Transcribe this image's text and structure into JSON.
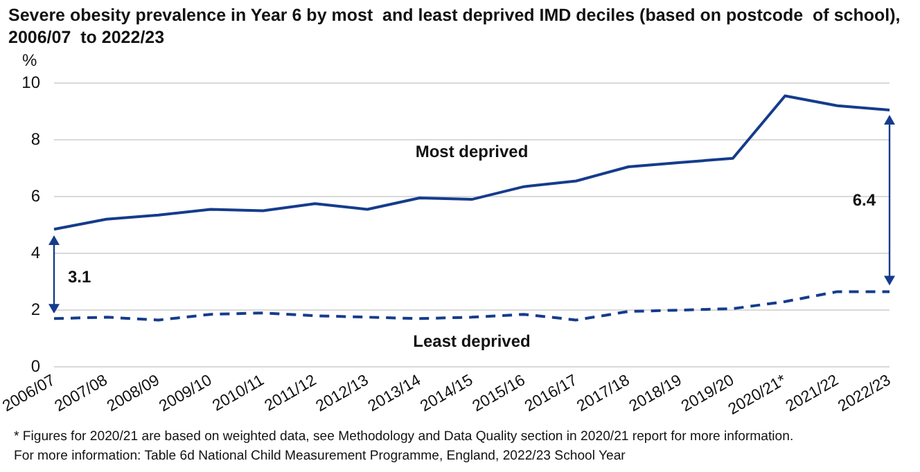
{
  "chart_data": {
    "type": "line",
    "title": "Severe obesity prevalence in Year 6 by most  and least deprived IMD deciles (based on postcode  of school), 2006/07  to 2022/23",
    "ylabel": "%",
    "categories": [
      "2006/07",
      "2007/08",
      "2008/09",
      "2009/10",
      "2010/11",
      "2011/12",
      "2012/13",
      "2013/14",
      "2014/15",
      "2015/16",
      "2016/17",
      "2017/18",
      "2018/19",
      "2019/20",
      "2020/21*",
      "2021/22",
      "2022/23"
    ],
    "series": [
      {
        "name": "Most deprived",
        "color": "#153c8c",
        "line_style": "solid",
        "values": [
          4.85,
          5.2,
          5.35,
          5.55,
          5.5,
          5.75,
          5.55,
          5.95,
          5.9,
          6.35,
          6.55,
          7.05,
          7.2,
          7.35,
          9.55,
          9.2,
          9.05
        ]
      },
      {
        "name": "Least deprived",
        "color": "#153c8c",
        "line_style": "dashed",
        "values": [
          1.7,
          1.75,
          1.65,
          1.85,
          1.9,
          1.8,
          1.75,
          1.7,
          1.75,
          1.85,
          1.65,
          1.95,
          2.0,
          2.05,
          2.3,
          2.65,
          2.65
        ]
      }
    ],
    "ylim": [
      0,
      10
    ],
    "yticks": [
      0,
      2,
      4,
      6,
      8,
      10
    ],
    "grid": "y",
    "legend": false,
    "marker": "none",
    "annotations": [
      "3.1",
      "6.4",
      "* Figures for 2020/21 are based on weighted data, see Methodology and Data Quality section in 2020/21 report for more information.",
      "For more information: Table 6d National Child Measurement Programme, England, 2022/23 School Year"
    ]
  }
}
